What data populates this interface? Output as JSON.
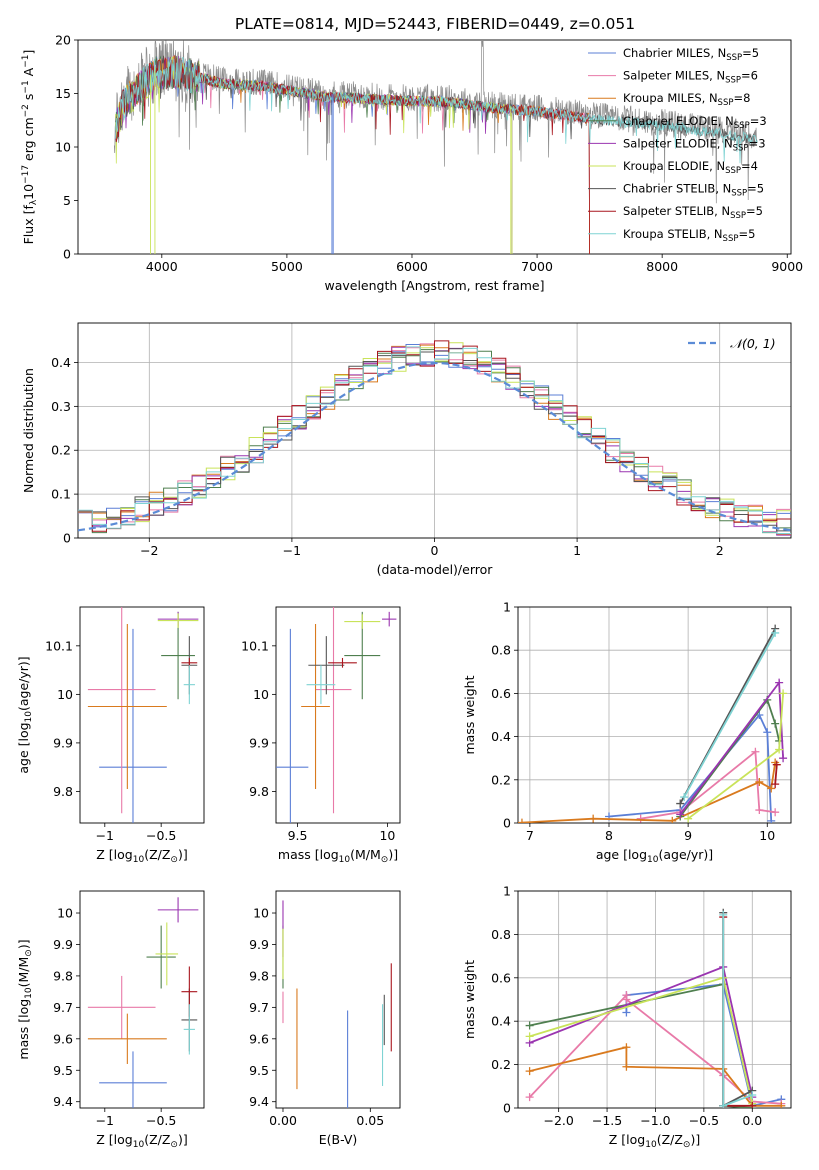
{
  "title": "PLATE=0814, MJD=52443, FIBERID=0449, z=0.051",
  "colors": {
    "Chabrier MILES": "#5b7fd6",
    "Salpeter MILES": "#e87aa8",
    "Kroupa MILES": "#d97a1e",
    "Chabrier ELODIE": "#4f7f4f",
    "Salpeter ELODIE": "#9a35b0",
    "Kroupa ELODIE": "#c9e35a",
    "Chabrier STELIB": "#555555",
    "Salpeter STELIB": "#a8161e",
    "Kroupa STELIB": "#7fd3d3",
    "normal": "#5b8bd6",
    "spectrum_gray": "#8c8c8c"
  },
  "chart_data": [
    {
      "id": "spectrum",
      "type": "line",
      "xlabel": "wavelength [Angstrom, rest frame]",
      "ylabel": "Flux [f",
      "ylabel_parts": {
        "a": "Flux [f",
        "sub": "λ",
        "b": "10",
        "sup1": "−17",
        "c": " erg cm",
        "sup2": "−2",
        "d": " s",
        "sup3": "−1",
        "e": " A",
        "sup4": "−1",
        "f": "]"
      },
      "xlim": [
        3330,
        9030
      ],
      "ylim": [
        0,
        20
      ],
      "xticks": [
        4000,
        5000,
        6000,
        7000,
        8000,
        9000
      ],
      "yticks": [
        0,
        5,
        10,
        15,
        20
      ],
      "legend_position": "top-right",
      "legend": [
        {
          "label": "Chabrier MILES, N",
          "sub": "SSP",
          "tail": "=5",
          "model": "Chabrier MILES"
        },
        {
          "label": "Salpeter MILES, N",
          "sub": "SSP",
          "tail": "=6",
          "model": "Salpeter MILES"
        },
        {
          "label": "Kroupa MILES, N",
          "sub": "SSP",
          "tail": "=8",
          "model": "Kroupa MILES"
        },
        {
          "label": "Chabrier ELODIE, N",
          "sub": "SSP",
          "tail": "=3",
          "model": "Chabrier ELODIE"
        },
        {
          "label": "Salpeter ELODIE, N",
          "sub": "SSP",
          "tail": "=3",
          "model": "Salpeter ELODIE"
        },
        {
          "label": "Kroupa ELODIE, N",
          "sub": "SSP",
          "tail": "=4",
          "model": "Kroupa ELODIE"
        },
        {
          "label": "Chabrier STELIB, N",
          "sub": "SSP",
          "tail": "=5",
          "model": "Chabrier STELIB"
        },
        {
          "label": "Salpeter STELIB, N",
          "sub": "SSP",
          "tail": "=5",
          "model": "Salpeter STELIB"
        },
        {
          "label": "Kroupa STELIB, N",
          "sub": "SSP",
          "tail": "=5",
          "model": "Kroupa STELIB"
        }
      ],
      "continuum": [
        [
          3620,
          11.5
        ],
        [
          3700,
          14.5
        ],
        [
          3800,
          15.5
        ],
        [
          3950,
          17.2
        ],
        [
          4100,
          17.3
        ],
        [
          4300,
          16.8
        ],
        [
          4500,
          16.2
        ],
        [
          4800,
          16.0
        ],
        [
          5000,
          15.6
        ],
        [
          5300,
          15.0
        ],
        [
          5600,
          14.8
        ],
        [
          6000,
          14.6
        ],
        [
          6300,
          14.5
        ],
        [
          6600,
          14.0
        ],
        [
          7000,
          13.6
        ],
        [
          7400,
          13.0
        ],
        [
          7800,
          12.5
        ],
        [
          8200,
          12.0
        ],
        [
          8500,
          11.5
        ],
        [
          8760,
          11.0
        ]
      ]
    },
    {
      "id": "residuals",
      "type": "step",
      "xlabel": "(data-model)/error",
      "ylabel": "Normed distribution",
      "xlim": [
        -2.5,
        2.5
      ],
      "ylim": [
        0,
        0.49
      ],
      "xticks": [
        -2,
        -1,
        0,
        1,
        2
      ],
      "yticks": [
        0.0,
        0.1,
        0.2,
        0.3,
        0.4
      ],
      "legend_position": "top-right",
      "legend_label": "𝒩(0, 1)",
      "bin_width": 0.1,
      "grid": true
    },
    {
      "id": "age_vs_Z",
      "type": "errorbar",
      "xlabel": "Z [log",
      "xlabel_parts": {
        "a": "Z [log",
        "sub": "10",
        "b": "(Z/Z",
        "sub2": "⊙",
        "c": ")]"
      },
      "ylabel": "age  [log",
      "ylabel_parts": {
        "a": "age  [log",
        "sub": "10",
        "b": "(age/yr)]"
      },
      "xlim": [
        -1.22,
        -0.12
      ],
      "ylim": [
        9.735,
        10.18
      ],
      "xticks": [
        -1.0,
        -0.5
      ],
      "yticks": [
        9.8,
        9.9,
        10.0,
        10.1
      ],
      "points": [
        {
          "model": "Chabrier MILES",
          "x": -0.75,
          "y": 9.85,
          "xerr": 0.3,
          "yerr": 0.285
        },
        {
          "model": "Salpeter MILES",
          "x": -0.85,
          "y": 10.01,
          "xerr": 0.3,
          "yerr": 0.255
        },
        {
          "model": "Kroupa MILES",
          "x": -0.8,
          "y": 9.975,
          "xerr": 0.35,
          "yerr": 0.17
        },
        {
          "model": "Chabrier ELODIE",
          "x": -0.35,
          "y": 10.08,
          "xerr": 0.15,
          "yerr": 0.09
        },
        {
          "model": "Salpeter ELODIE",
          "x": -0.35,
          "y": 10.155,
          "xerr": 0.18,
          "yerr": 0.015
        },
        {
          "model": "Kroupa ELODIE",
          "x": -0.35,
          "y": 10.152,
          "xerr": 0.18,
          "yerr": 0.015
        },
        {
          "model": "Chabrier STELIB",
          "x": -0.25,
          "y": 10.06,
          "xerr": 0.07,
          "yerr": 0.06
        },
        {
          "model": "Salpeter STELIB",
          "x": -0.25,
          "y": 10.065,
          "xerr": 0.07,
          "yerr": 0.01
        },
        {
          "model": "Kroupa STELIB",
          "x": -0.25,
          "y": 10.02,
          "xerr": 0.05,
          "yerr": 0.04
        }
      ]
    },
    {
      "id": "age_vs_mass",
      "type": "errorbar",
      "xlabel": "mass [log",
      "xlabel_parts": {
        "a": "mass [log",
        "sub": "10",
        "b": "(M/M",
        "sub2": "⊙",
        "c": ")]"
      },
      "xlim": [
        9.38,
        10.07
      ],
      "ylim": [
        9.735,
        10.18
      ],
      "xticks": [
        9.5,
        10.0
      ],
      "yticks": [
        9.8,
        9.9,
        10.0,
        10.1
      ],
      "points": [
        {
          "model": "Chabrier MILES",
          "x": 9.46,
          "y": 9.85,
          "xerr": 0.1,
          "yerr": 0.285
        },
        {
          "model": "Salpeter MILES",
          "x": 9.7,
          "y": 10.01,
          "xerr": 0.1,
          "yerr": 0.255
        },
        {
          "model": "Kroupa MILES",
          "x": 9.6,
          "y": 9.975,
          "xerr": 0.08,
          "yerr": 0.17
        },
        {
          "model": "Chabrier ELODIE",
          "x": 9.86,
          "y": 10.08,
          "xerr": 0.1,
          "yerr": 0.09
        },
        {
          "model": "Salpeter ELODIE",
          "x": 10.01,
          "y": 10.155,
          "xerr": 0.04,
          "yerr": 0.015
        },
        {
          "model": "Kroupa ELODIE",
          "x": 9.86,
          "y": 10.15,
          "xerr": 0.1,
          "yerr": 0.015
        },
        {
          "model": "Chabrier STELIB",
          "x": 9.66,
          "y": 10.06,
          "xerr": 0.1,
          "yerr": 0.06
        },
        {
          "model": "Salpeter STELIB",
          "x": 9.75,
          "y": 10.065,
          "xerr": 0.08,
          "yerr": 0.01
        },
        {
          "model": "Kroupa STELIB",
          "x": 9.63,
          "y": 10.02,
          "xerr": 0.08,
          "yerr": 0.04
        }
      ]
    },
    {
      "id": "mass_weight_vs_age",
      "type": "line",
      "xlabel": "age  [log",
      "xlabel_parts": {
        "a": "age  [log",
        "sub": "10",
        "b": "(age/yr)]"
      },
      "ylabel": "mass weight",
      "xlim": [
        6.85,
        10.3
      ],
      "ylim": [
        0,
        1.0
      ],
      "xticks": [
        7,
        8,
        9,
        10
      ],
      "yticks": [
        0.0,
        0.2,
        0.4,
        0.6,
        0.8,
        1.0
      ],
      "grid": true,
      "series": [
        {
          "model": "Chabrier MILES",
          "x": [
            8.0,
            8.9,
            9.9,
            10.0,
            10.05
          ],
          "y": [
            0.03,
            0.06,
            0.5,
            0.42,
            0.01
          ]
        },
        {
          "model": "Salpeter MILES",
          "x": [
            8.4,
            8.9,
            9.85,
            9.9,
            10.1
          ],
          "y": [
            0.02,
            0.05,
            0.33,
            0.06,
            0.05
          ]
        },
        {
          "model": "Kroupa MILES",
          "x": [
            6.9,
            7.8,
            8.8,
            9.9,
            10.05,
            10.1
          ],
          "y": [
            0.002,
            0.02,
            0.01,
            0.19,
            0.16,
            0.28
          ]
        },
        {
          "model": "Chabrier ELODIE",
          "x": [
            8.9,
            10.0,
            10.1,
            10.15
          ],
          "y": [
            0.03,
            0.57,
            0.46,
            0.38
          ]
        },
        {
          "model": "Salpeter ELODIE",
          "x": [
            8.9,
            10.15,
            10.2
          ],
          "y": [
            0.04,
            0.65,
            0.3
          ]
        },
        {
          "model": "Kroupa ELODIE",
          "x": [
            9.0,
            10.15,
            10.2
          ],
          "y": [
            0.02,
            0.34,
            0.6
          ]
        },
        {
          "model": "Chabrier STELIB",
          "x": [
            8.9,
            10.1
          ],
          "y": [
            0.09,
            0.9
          ]
        },
        {
          "model": "Salpeter STELIB",
          "x": [
            10.1,
            10.12
          ],
          "y": [
            0.18,
            0.27
          ]
        },
        {
          "model": "Kroupa STELIB",
          "x": [
            8.95,
            10.1
          ],
          "y": [
            0.12,
            0.88
          ]
        }
      ]
    },
    {
      "id": "mass_vs_Z",
      "type": "errorbar",
      "xlabel": "Z [log",
      "xlabel_parts": {
        "a": "Z [log",
        "sub": "10",
        "b": "(Z/Z",
        "sub2": "⊙",
        "c": ")]"
      },
      "ylabel": "mass [log",
      "ylabel_parts": {
        "a": "mass [log",
        "sub": "10",
        "b": "(M/M",
        "sub2": "⊙",
        "c": ")]"
      },
      "xlim": [
        -1.22,
        -0.12
      ],
      "ylim": [
        9.38,
        10.07
      ],
      "xticks": [
        -1.0,
        -0.5
      ],
      "yticks": [
        9.4,
        9.5,
        9.6,
        9.7,
        9.8,
        9.9,
        10.0
      ],
      "points": [
        {
          "model": "Chabrier MILES",
          "x": -0.75,
          "y": 9.46,
          "xerr": 0.3,
          "yerr": 0.1
        },
        {
          "model": "Salpeter MILES",
          "x": -0.85,
          "y": 9.7,
          "xerr": 0.3,
          "yerr": 0.1
        },
        {
          "model": "Kroupa MILES",
          "x": -0.8,
          "y": 9.6,
          "xerr": 0.35,
          "yerr": 0.08
        },
        {
          "model": "Chabrier ELODIE",
          "x": -0.5,
          "y": 9.86,
          "xerr": 0.13,
          "yerr": 0.1
        },
        {
          "model": "Salpeter ELODIE",
          "x": -0.35,
          "y": 10.01,
          "xerr": 0.18,
          "yerr": 0.04
        },
        {
          "model": "Kroupa ELODIE",
          "x": -0.45,
          "y": 9.87,
          "xerr": 0.1,
          "yerr": 0.1
        },
        {
          "model": "Chabrier STELIB",
          "x": -0.25,
          "y": 9.66,
          "xerr": 0.07,
          "yerr": 0.1
        },
        {
          "model": "Salpeter STELIB",
          "x": -0.25,
          "y": 9.75,
          "xerr": 0.07,
          "yerr": 0.08
        },
        {
          "model": "Kroupa STELIB",
          "x": -0.25,
          "y": 9.63,
          "xerr": 0.05,
          "yerr": 0.08
        }
      ]
    },
    {
      "id": "mass_vs_ebv",
      "type": "errorbar",
      "xlabel": "E(B-V)",
      "xlim": [
        -0.004,
        0.067
      ],
      "ylim": [
        9.38,
        10.07
      ],
      "xticks": [
        0.0,
        0.05
      ],
      "xtick_labels": [
        "0.00",
        "0.05"
      ],
      "yticks": [
        9.4,
        9.5,
        9.6,
        9.7,
        9.8,
        9.9,
        10.0
      ],
      "points": [
        {
          "model": "Chabrier MILES",
          "x": 0.037,
          "y": 9.46,
          "xerr": 0,
          "yerr": 0.23
        },
        {
          "model": "Salpeter MILES",
          "x": 0.0,
          "y": 9.7,
          "xerr": 0,
          "yerr": 0.05
        },
        {
          "model": "Kroupa MILES",
          "x": 0.008,
          "y": 9.6,
          "xerr": 0,
          "yerr": 0.16
        },
        {
          "model": "Chabrier ELODIE",
          "x": 0.0,
          "y": 9.86,
          "xerr": 0,
          "yerr": 0.1
        },
        {
          "model": "Salpeter ELODIE",
          "x": 0.0,
          "y": 9.95,
          "xerr": 0,
          "yerr": 0.09
        },
        {
          "model": "Kroupa ELODIE",
          "x": 0.0,
          "y": 9.87,
          "xerr": 0,
          "yerr": 0.08
        },
        {
          "model": "Chabrier STELIB",
          "x": 0.058,
          "y": 9.66,
          "xerr": 0,
          "yerr": 0.08
        },
        {
          "model": "Salpeter STELIB",
          "x": 0.062,
          "y": 9.7,
          "xerr": 0,
          "yerr": 0.14
        },
        {
          "model": "Kroupa STELIB",
          "x": 0.057,
          "y": 9.58,
          "xerr": 0,
          "yerr": 0.13
        }
      ]
    },
    {
      "id": "mass_weight_vs_Z",
      "type": "line",
      "xlabel": "Z [log",
      "xlabel_parts": {
        "a": "Z [log",
        "sub": "10",
        "b": "(Z/Z",
        "sub2": "⊙",
        "c": ")]"
      },
      "ylabel": "mass weight",
      "xlim": [
        -2.42,
        0.4
      ],
      "ylim": [
        0,
        1.0
      ],
      "xticks": [
        -2.0,
        -1.5,
        -1.0,
        -0.5,
        0.0
      ],
      "xtick_labels": [
        "−2.0",
        "−1.5",
        "−1.0",
        "−0.5",
        "0.0"
      ],
      "yticks": [
        0.0,
        0.2,
        0.4,
        0.6,
        0.8,
        1.0
      ],
      "grid": true,
      "series": [
        {
          "model": "Chabrier MILES",
          "x": [
            -1.3,
            -1.3,
            -0.3,
            0.0,
            0.3
          ],
          "y": [
            0.44,
            0.52,
            0.57,
            0.01,
            0.04
          ]
        },
        {
          "model": "Salpeter MILES",
          "x": [
            -2.3,
            -1.3,
            -1.3,
            -0.3,
            0.0,
            0.3
          ],
          "y": [
            0.05,
            0.52,
            0.5,
            0.15,
            0.03,
            0.02
          ]
        },
        {
          "model": "Kroupa MILES",
          "x": [
            -2.3,
            -1.3,
            -1.3,
            -0.3,
            0.0,
            0.3
          ],
          "y": [
            0.17,
            0.28,
            0.19,
            0.18,
            0.01,
            0.01
          ]
        },
        {
          "model": "Chabrier ELODIE",
          "x": [
            -2.3,
            -0.3,
            -0.3,
            0.0
          ],
          "y": [
            0.38,
            0.57,
            0.01,
            0.0
          ]
        },
        {
          "model": "Salpeter ELODIE",
          "x": [
            -2.3,
            -0.3,
            0.0
          ],
          "y": [
            0.3,
            0.65,
            0.05
          ]
        },
        {
          "model": "Kroupa ELODIE",
          "x": [
            -2.3,
            -0.3,
            0.0
          ],
          "y": [
            0.33,
            0.6,
            0.02
          ]
        },
        {
          "model": "Chabrier STELIB",
          "x": [
            -0.3,
            -0.3,
            0.0
          ],
          "y": [
            0.9,
            0.01,
            0.08
          ]
        },
        {
          "model": "Salpeter STELIB",
          "x": [
            -0.3,
            -0.3,
            0.0
          ],
          "y": [
            0.88,
            0.01,
            0.01
          ]
        },
        {
          "model": "Kroupa STELIB",
          "x": [
            -0.3,
            -0.3,
            0.0
          ],
          "y": [
            0.89,
            0.01,
            0.06
          ]
        }
      ]
    }
  ]
}
